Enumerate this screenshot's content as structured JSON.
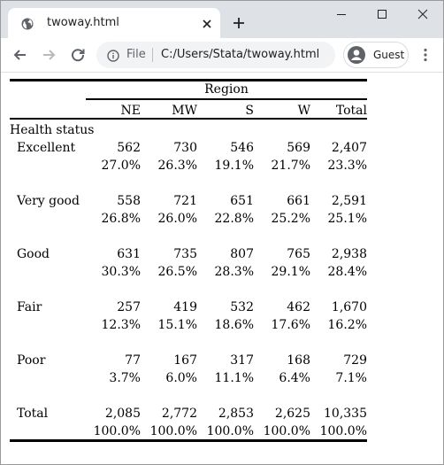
{
  "browser": {
    "tab_title": "twoway.html",
    "omnibox_scheme": "File",
    "url": "C:/Users/Stata/twoway.html",
    "profile_label": "Guest",
    "icons": [
      "globe-icon",
      "close-icon",
      "plus-icon",
      "back-icon",
      "forward-icon",
      "reload-icon",
      "info-icon",
      "avatar-icon",
      "kebab-menu-icon",
      "minimize-icon",
      "maximize-icon",
      "window-close-icon"
    ]
  },
  "table": {
    "spanner": "Region",
    "columns": [
      "NE",
      "MW",
      "S",
      "W",
      "Total"
    ],
    "row_header": "Health status",
    "rows": [
      {
        "label": "Excellent",
        "counts": [
          "562",
          "730",
          "546",
          "569",
          "2,407"
        ],
        "pcts": [
          "27.0%",
          "26.3%",
          "19.1%",
          "21.7%",
          "23.3%"
        ]
      },
      {
        "label": "Very good",
        "counts": [
          "558",
          "721",
          "651",
          "661",
          "2,591"
        ],
        "pcts": [
          "26.8%",
          "26.0%",
          "22.8%",
          "25.2%",
          "25.1%"
        ]
      },
      {
        "label": "Good",
        "counts": [
          "631",
          "735",
          "807",
          "765",
          "2,938"
        ],
        "pcts": [
          "30.3%",
          "26.5%",
          "28.3%",
          "29.1%",
          "28.4%"
        ]
      },
      {
        "label": "Fair",
        "counts": [
          "257",
          "419",
          "532",
          "462",
          "1,670"
        ],
        "pcts": [
          "12.3%",
          "15.1%",
          "18.6%",
          "17.6%",
          "16.2%"
        ]
      },
      {
        "label": "Poor",
        "counts": [
          "77",
          "167",
          "317",
          "168",
          "729"
        ],
        "pcts": [
          "3.7%",
          "6.0%",
          "11.1%",
          "6.4%",
          "7.1%"
        ]
      },
      {
        "label": "Total",
        "counts": [
          "2,085",
          "2,772",
          "2,853",
          "2,625",
          "10,335"
        ],
        "pcts": [
          "100.0%",
          "100.0%",
          "100.0%",
          "100.0%",
          "100.0%"
        ]
      }
    ]
  }
}
